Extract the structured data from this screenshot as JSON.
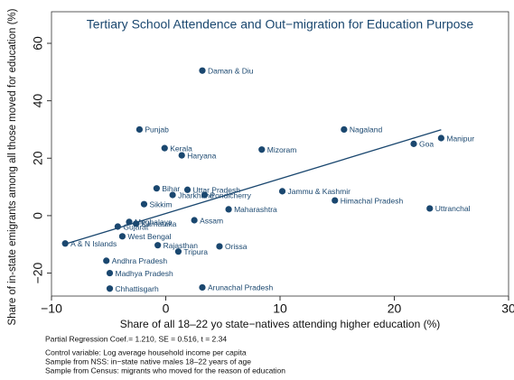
{
  "chart_data": {
    "type": "scatter",
    "title": "Tertiary School Attendence and Out−migration for Education Purpose",
    "x_label": "Share of all 18–22 yo state−natives attending higher education (%)",
    "y_label": "Share of in-state emigrants among all those moved for education (%)",
    "color": "#1a476f",
    "grid": false,
    "xlim": [
      -10,
      30
    ],
    "ylim": [
      -28,
      71
    ],
    "xticks": [
      {
        "value": -10,
        "label": "−10"
      },
      0,
      10,
      20,
      30
    ],
    "yticks": [
      {
        "value": -20,
        "label": "−20"
      },
      0,
      20,
      40,
      60
    ],
    "labels": [
      "Daman & Diu",
      "Punjab",
      "Nagaland",
      "Manipur",
      "Goa",
      "Kerala",
      "Mizoram",
      "Haryana",
      "Bihar",
      "Uttar Pradesh",
      "Jharkhand",
      "Pondicherry",
      "Jammu & Kashmir",
      "Himachal Pradesh",
      "Sikkim",
      "Maharashtra",
      "Uttranchal",
      "Assam",
      "Meghalaya",
      "Karnataka",
      "Gujarat",
      "West Bengal",
      "A & N Islands",
      "Rajasthan",
      "Orissa",
      "Tripura",
      "Andhra Pradesh",
      "Madhya Pradesh",
      "Chhattisgarh",
      "Arunachal Pradesh"
    ],
    "x": [
      3.2,
      -2.3,
      15.6,
      24.1,
      21.7,
      -0.1,
      8.4,
      1.4,
      -0.8,
      1.9,
      0.6,
      3.4,
      10.2,
      14.8,
      -1.9,
      5.5,
      23.1,
      2.5,
      -3.2,
      -2.6,
      -4.2,
      -3.8,
      -8.8,
      -0.7,
      4.7,
      1.1,
      -5.2,
      -4.9,
      -4.9,
      3.2
    ],
    "y": [
      50.5,
      30,
      30,
      27,
      25,
      23.5,
      23,
      21,
      9.5,
      9,
      7.2,
      7.2,
      8.5,
      5.3,
      4,
      2.2,
      2.5,
      -1.6,
      -2.2,
      -2.8,
      -3.8,
      -7.2,
      -9.7,
      -10.3,
      -10.7,
      -12.5,
      -15.7,
      -20,
      -25.4,
      -25
    ],
    "fit": {
      "x": [
        -8.8,
        24.1
      ],
      "y": [
        -9.9,
        29.9
      ]
    },
    "notes": [
      "Partial Regression Coef.= 1.210, SE = 0.516, t = 2.34",
      "Control variable: Log average household income per capita",
      "Sample from NSS: in−state native males 18–22 years of age",
      "Sample from Census: migrants who moved for the reason of education"
    ]
  }
}
